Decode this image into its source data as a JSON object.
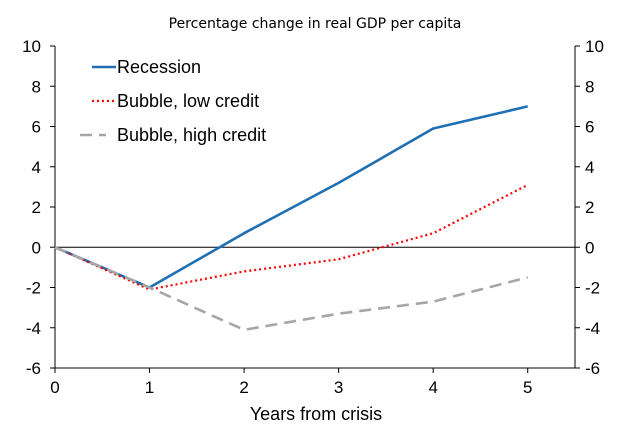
{
  "chart_data": {
    "type": "line",
    "title": "Percentage change in real GDP per capita",
    "xlabel": "Years from crisis",
    "ylabel": "",
    "x": [
      0,
      1,
      2,
      3,
      4,
      5
    ],
    "xlim": [
      0,
      5.5
    ],
    "ylim": [
      -6,
      10
    ],
    "x_ticks": [
      "0",
      "1",
      "2",
      "3",
      "4",
      "5"
    ],
    "y_ticks": [
      "-6",
      "-4",
      "-2",
      "0",
      "2",
      "4",
      "6",
      "8",
      "10"
    ],
    "y_ticks_right": [
      "-6",
      "-4",
      "-2",
      "0",
      "2",
      "4",
      "6",
      "8",
      "10"
    ],
    "grid": false,
    "legend_position": "top-left",
    "series": [
      {
        "name": "Recession",
        "values": [
          0,
          -2.0,
          0.7,
          3.2,
          5.9,
          7.0
        ],
        "color": "#1F6FB4",
        "style": "solid"
      },
      {
        "name": "Bubble, low credit",
        "values": [
          0,
          -2.1,
          -1.2,
          -0.6,
          0.7,
          3.1
        ],
        "color": "#FF0000",
        "style": "dotted"
      },
      {
        "name": "Bubble, high credit",
        "values": [
          0,
          -2.0,
          -4.1,
          -3.3,
          -2.7,
          -1.5
        ],
        "color": "#A6A6A6",
        "style": "dashed"
      }
    ]
  }
}
